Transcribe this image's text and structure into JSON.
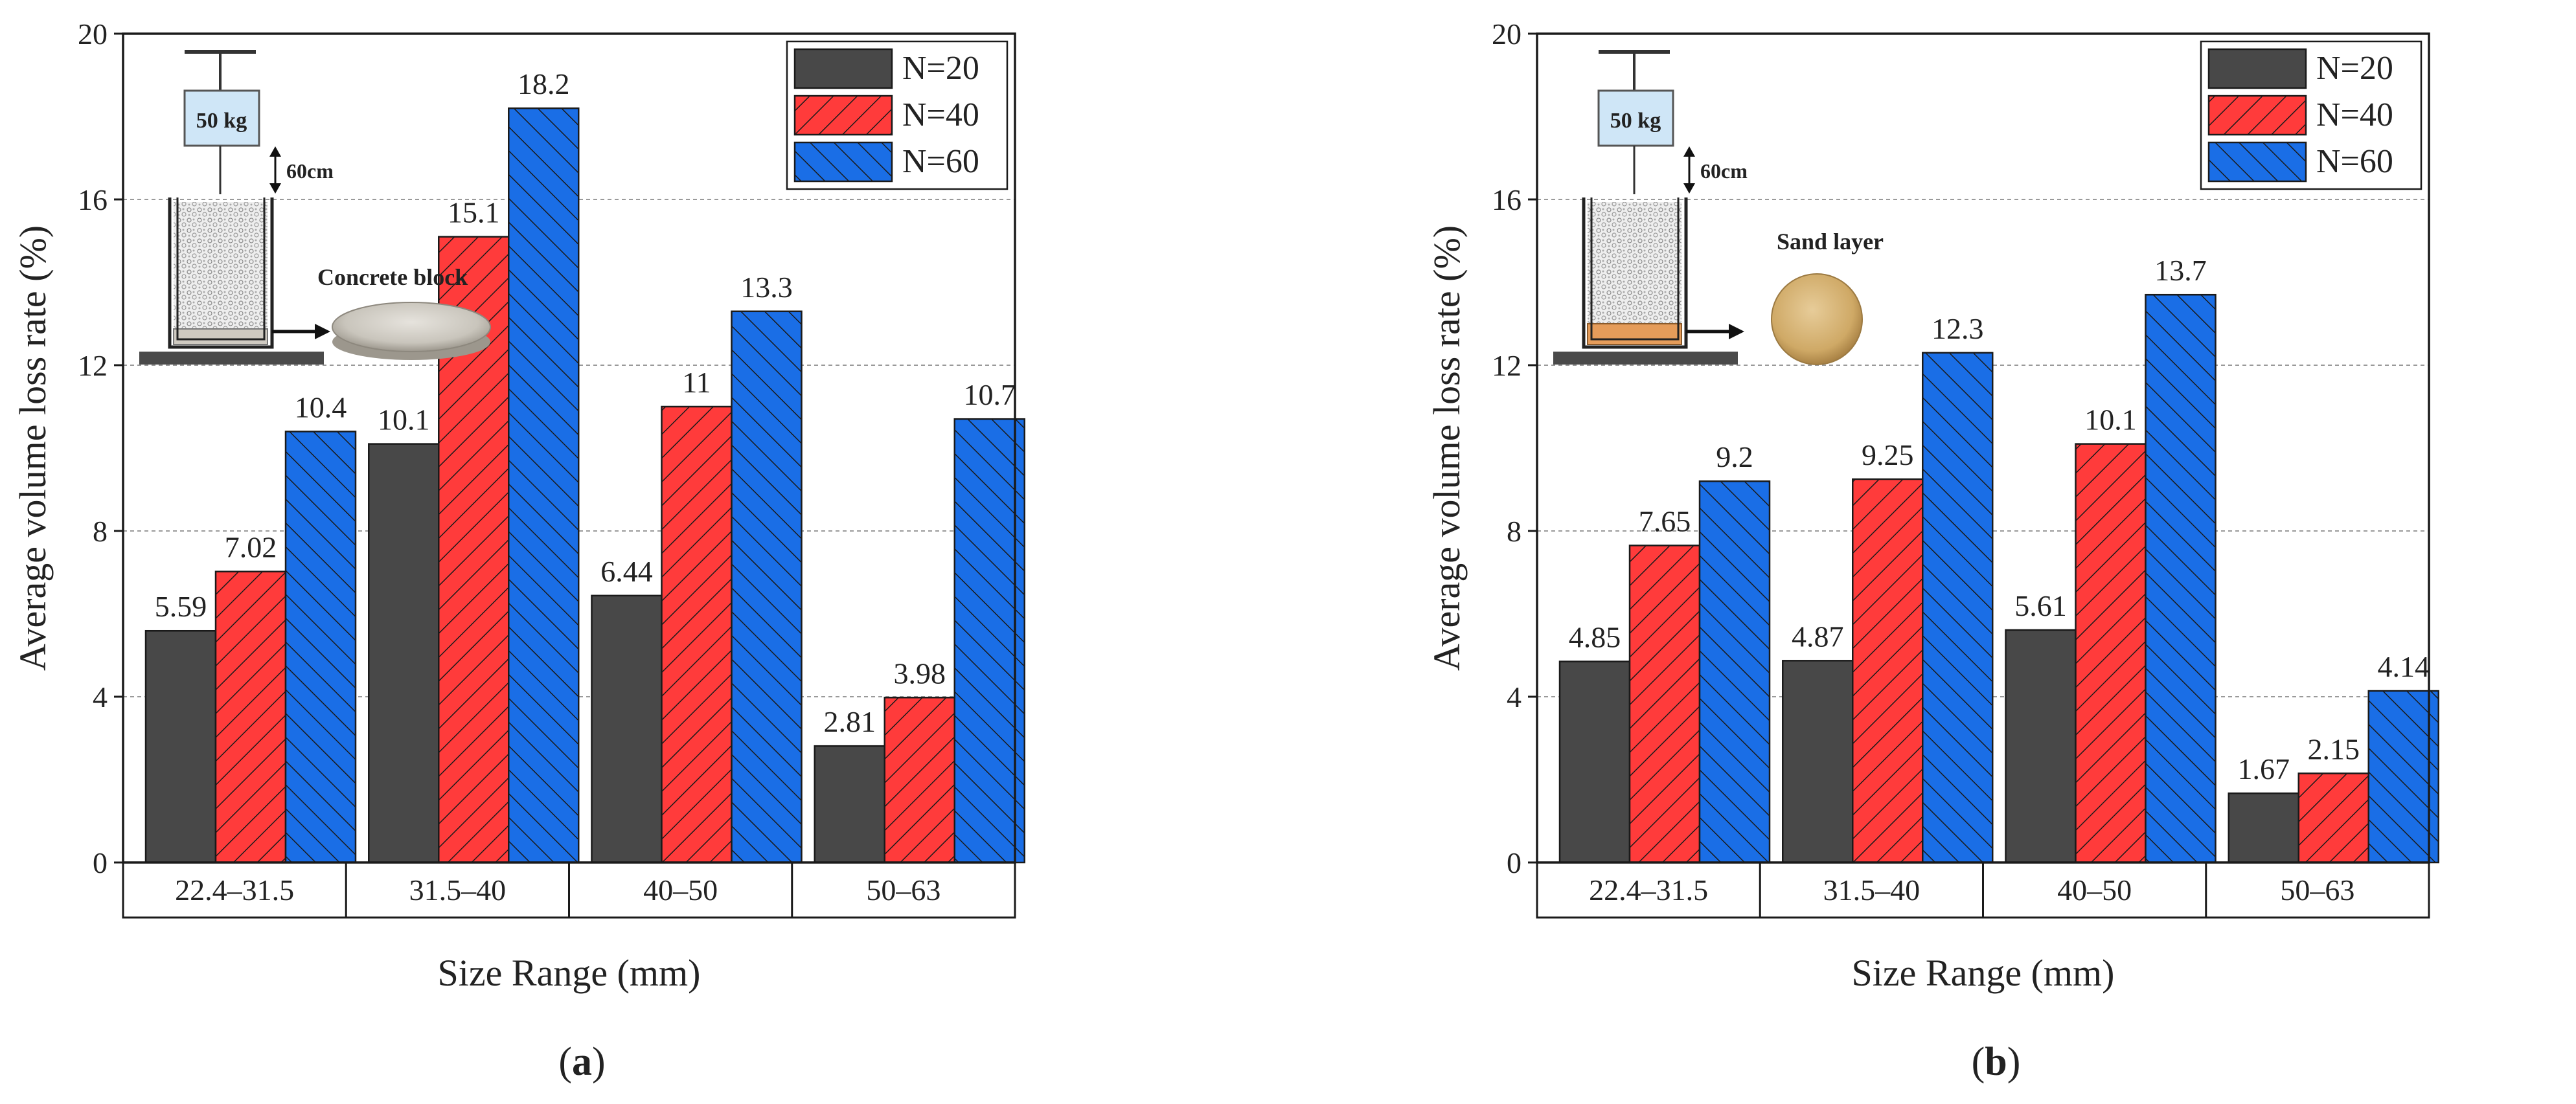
{
  "chart_data": [
    {
      "type": "bar",
      "panel_label": "(a)",
      "categories": [
        "22.4–31.5",
        "31.5–40",
        "40–50",
        "50–63"
      ],
      "series": [
        {
          "name": "N=20",
          "values": [
            5.59,
            10.1,
            6.44,
            2.81
          ],
          "labels": [
            "5.59",
            "10.1",
            "6.44",
            "2.81"
          ],
          "color": "#484848",
          "pattern": "solid"
        },
        {
          "name": "N=40",
          "values": [
            7.02,
            15.1,
            11,
            3.98
          ],
          "labels": [
            "7.02",
            "15.1",
            "11",
            "3.98"
          ],
          "color": "#ff3b3b",
          "pattern": "hatch-right"
        },
        {
          "name": "N=60",
          "values": [
            10.4,
            18.2,
            13.3,
            10.7
          ],
          "labels": [
            "10.4",
            "18.2",
            "13.3",
            "10.7"
          ],
          "color": "#1a6ee6",
          "pattern": "hatch-left"
        }
      ],
      "xlabel": "Size Range (mm)",
      "ylabel": "Average volume loss rate (%)",
      "ylim": [
        0,
        20
      ],
      "yticks": [
        "0",
        "4",
        "8",
        "12",
        "16",
        "20"
      ],
      "grid": true,
      "legend": "top-right",
      "inset": {
        "weight_label": "50 kg",
        "height_label": "60cm",
        "base_label": "Concrete block",
        "base_type": "concrete"
      }
    },
    {
      "type": "bar",
      "panel_label": "(b)",
      "categories": [
        "22.4–31.5",
        "31.5–40",
        "40–50",
        "50–63"
      ],
      "series": [
        {
          "name": "N=20",
          "values": [
            4.85,
            4.87,
            5.61,
            1.67
          ],
          "labels": [
            "4.85",
            "4.87",
            "5.61",
            "1.67"
          ],
          "color": "#484848",
          "pattern": "solid"
        },
        {
          "name": "N=40",
          "values": [
            7.65,
            9.25,
            10.1,
            2.15
          ],
          "labels": [
            "7.65",
            "9.25",
            "10.1",
            "2.15"
          ],
          "color": "#ff3b3b",
          "pattern": "hatch-right"
        },
        {
          "name": "N=60",
          "values": [
            9.2,
            12.3,
            13.7,
            4.14
          ],
          "labels": [
            "9.2",
            "12.3",
            "13.7",
            "4.14"
          ],
          "color": "#1a6ee6",
          "pattern": "hatch-left"
        }
      ],
      "xlabel": "Size Range (mm)",
      "ylabel": "Average volume loss rate (%)",
      "ylim": [
        0,
        20
      ],
      "yticks": [
        "0",
        "4",
        "8",
        "12",
        "16",
        "20"
      ],
      "grid": true,
      "legend": "top-right",
      "inset": {
        "weight_label": "50 kg",
        "height_label": "60cm",
        "base_label": "Sand layer",
        "base_type": "sand"
      }
    }
  ]
}
